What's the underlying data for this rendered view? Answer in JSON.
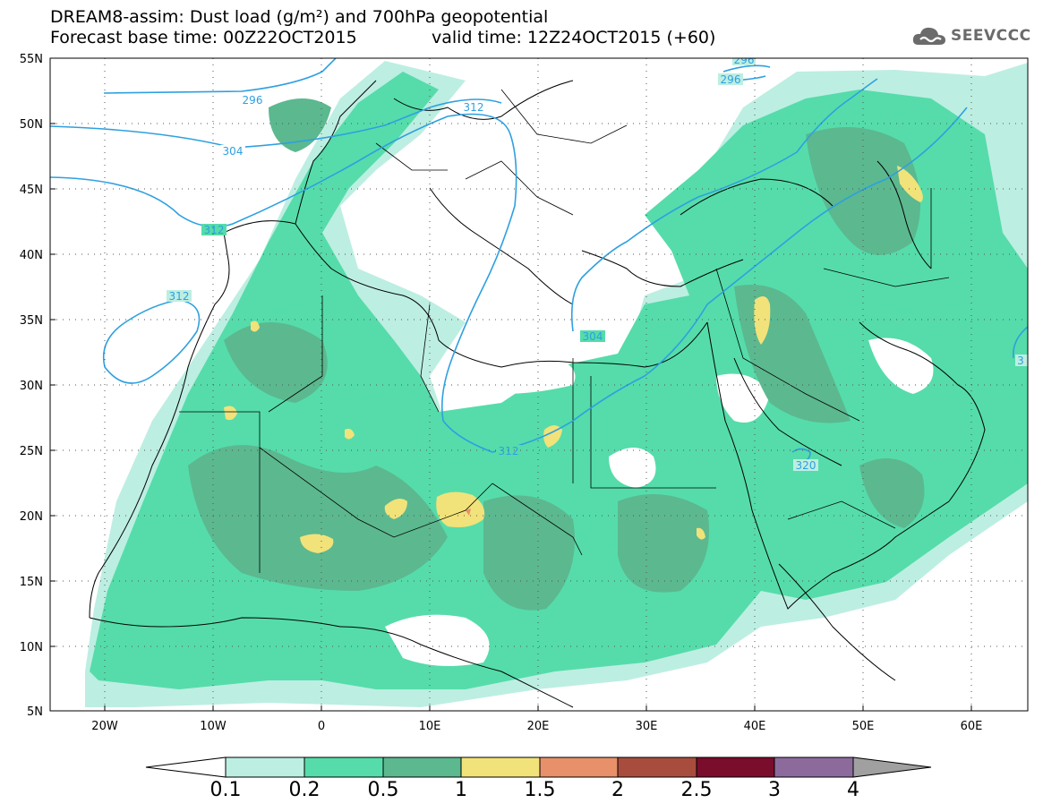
{
  "header": {
    "line1": "DREAM8-assim: Dust load (g/m²) and 700hPa geopotential",
    "line2_left": "Forecast base time: 00Z22OCT2015",
    "line2_right": "valid time: 12Z24OCT2015 (+60)"
  },
  "logo": {
    "text": "SEEVCCC",
    "icon": "cloud-icon"
  },
  "map": {
    "lat_labels": [
      "55N",
      "50N",
      "45N",
      "40N",
      "35N",
      "30N",
      "25N",
      "20N",
      "15N",
      "10N",
      "5N"
    ],
    "lon_labels": [
      "20W",
      "10W",
      "0",
      "10E",
      "20E",
      "30E",
      "40E",
      "50E",
      "60E"
    ],
    "contour_labels": [
      "296",
      "296",
      "296",
      "304",
      "304",
      "312",
      "312",
      "312",
      "312",
      "320",
      "3"
    ]
  },
  "colorbar": {
    "labels": [
      "0.1",
      "0.2",
      "0.5",
      "1",
      "1.5",
      "2",
      "2.5",
      "3",
      "4"
    ],
    "colors": [
      "#bdeee2",
      "#55dcaa",
      "#5cb88f",
      "#f2e27a",
      "#e8906a",
      "#a84d3e",
      "#7a0c2c",
      "#8c6b9c",
      "#a0a0a0"
    ]
  }
}
